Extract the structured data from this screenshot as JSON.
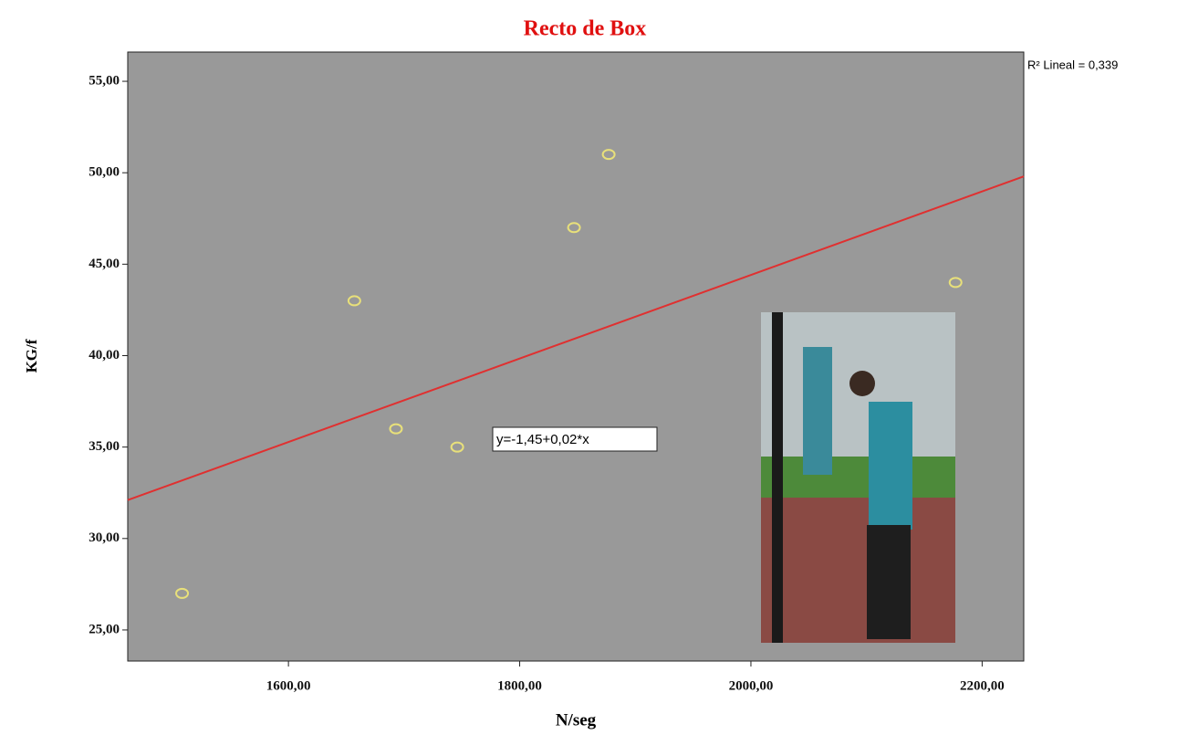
{
  "chart_data": {
    "type": "scatter",
    "title": "Recto de Box",
    "x_label": "N/seg",
    "y_label": "KG/f",
    "series": [
      {
        "color": "#e8e07a",
        "x": [
          1508,
          1657,
          1693,
          1746,
          1847,
          1877,
          2177
        ],
        "values": [
          27,
          43,
          36,
          35,
          47,
          51,
          44
        ]
      }
    ],
    "trendline": {
      "color": "#e03030",
      "x": [
        1461,
        2236
      ],
      "values": [
        32.1,
        49.8
      ]
    },
    "equation_label": "y=-1,45+0,02*x",
    "r2_label": "R² Lineal = 0,339",
    "xlim": [
      1461,
      2236
    ],
    "ylim": [
      23.3,
      56.6
    ],
    "xticks": [
      {
        "value": 1600,
        "label": "1600,00"
      },
      {
        "value": 1800,
        "label": "1800,00"
      },
      {
        "value": 2000,
        "label": "2000,00"
      },
      {
        "value": 2200,
        "label": "2200,00"
      }
    ],
    "yticks": [
      {
        "value": 25,
        "label": "25,00"
      },
      {
        "value": 30,
        "label": "30,00"
      },
      {
        "value": 35,
        "label": "35,00"
      },
      {
        "value": 40,
        "label": "40,00"
      },
      {
        "value": 45,
        "label": "45,00"
      },
      {
        "value": 50,
        "label": "50,00"
      },
      {
        "value": 55,
        "label": "55,00"
      }
    ],
    "background": "#999999"
  }
}
